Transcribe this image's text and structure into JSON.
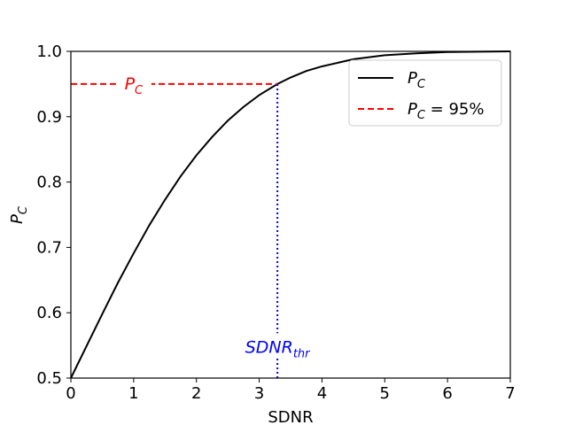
{
  "chart_data": {
    "type": "line",
    "xlabel": "SDNR",
    "ylabel": "P_C",
    "xlim": [
      0,
      7
    ],
    "ylim": [
      0.5,
      1.0
    ],
    "xticks": [
      "0",
      "1",
      "2",
      "3",
      "4",
      "5",
      "6",
      "7"
    ],
    "yticks": [
      "0.5",
      "0.6",
      "0.7",
      "0.8",
      "0.9",
      "1.0"
    ],
    "grid": false,
    "legend_position": "top-right",
    "series": [
      {
        "name": "P_C",
        "color": "#000000",
        "style": "solid",
        "x": [
          0,
          0.25,
          0.5,
          0.75,
          1.0,
          1.25,
          1.5,
          1.75,
          2.0,
          2.25,
          2.5,
          2.75,
          3.0,
          3.29,
          3.5,
          3.75,
          4.0,
          4.5,
          5.0,
          5.5,
          6.0,
          6.5,
          7.0
        ],
        "y": [
          0.5,
          0.549,
          0.598,
          0.646,
          0.691,
          0.734,
          0.773,
          0.809,
          0.841,
          0.869,
          0.894,
          0.915,
          0.933,
          0.95,
          0.96,
          0.97,
          0.977,
          0.988,
          0.994,
          0.997,
          0.999,
          0.9995,
          1.0
        ]
      },
      {
        "name": "P_C = 95%",
        "color": "#ff0000",
        "style": "dashed",
        "x": [
          0,
          3.29
        ],
        "y": [
          0.95,
          0.95
        ]
      },
      {
        "name": "",
        "color": "#0000ff",
        "style": "dotted",
        "x": [
          3.29,
          3.29
        ],
        "y": [
          0.5,
          0.95
        ]
      }
    ],
    "annotations": [
      {
        "text": "P_C",
        "x": 1.0,
        "y": 0.95,
        "color": "#ff0000"
      },
      {
        "text": "SDNR_thr",
        "x": 3.29,
        "y": 0.547,
        "color": "#0000ff"
      }
    ],
    "legend": [
      {
        "label": "P_C",
        "color": "#000000",
        "style": "solid"
      },
      {
        "label": "P_C = 95%",
        "color": "#ff0000",
        "style": "dashed"
      }
    ]
  }
}
